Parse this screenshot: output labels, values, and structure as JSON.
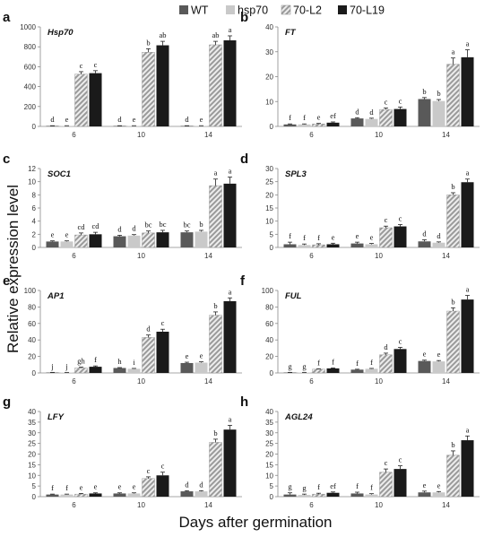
{
  "legend": [
    {
      "name": "WT",
      "color": "#595959",
      "pattern": "solid"
    },
    {
      "name": "hsp70",
      "color": "#c9c9c9",
      "pattern": "solid"
    },
    {
      "name": "70-L2",
      "color": "#a6a6a6",
      "pattern": "diagonal-stripes"
    },
    {
      "name": "70-L19",
      "color": "#1a1a1a",
      "pattern": "solid"
    }
  ],
  "ylabel": "Relative expression level",
  "xlabel": "Days after germination",
  "chart_data": [
    {
      "type": "bar",
      "panel": "a",
      "gene": "Hsp70",
      "categories": [
        "6",
        "10",
        "14"
      ],
      "ylim": [
        0,
        1000
      ],
      "yticks": [
        0,
        200,
        400,
        600,
        800,
        1000
      ],
      "series": [
        {
          "name": "WT",
          "values": [
            5,
            5,
            5
          ],
          "errors": [
            2,
            2,
            2
          ],
          "letters": [
            "d",
            "d",
            "d"
          ]
        },
        {
          "name": "hsp70",
          "values": [
            5,
            5,
            5
          ],
          "errors": [
            2,
            2,
            2
          ],
          "letters": [
            "e",
            "e",
            "e"
          ]
        },
        {
          "name": "70-L2",
          "values": [
            525,
            745,
            820
          ],
          "errors": [
            25,
            35,
            35
          ],
          "letters": [
            "c",
            "b",
            "ab"
          ]
        },
        {
          "name": "70-L19",
          "values": [
            535,
            815,
            865
          ],
          "errors": [
            25,
            40,
            45
          ],
          "letters": [
            "c",
            "ab",
            "a"
          ]
        }
      ]
    },
    {
      "type": "bar",
      "panel": "b",
      "gene": "FT",
      "categories": [
        "6",
        "10",
        "14"
      ],
      "ylim": [
        0,
        40
      ],
      "yticks": [
        0,
        10,
        20,
        30,
        40
      ],
      "series": [
        {
          "name": "WT",
          "values": [
            0.8,
            3.2,
            11
          ],
          "errors": [
            0.2,
            0.3,
            0.6
          ],
          "letters": [
            "f",
            "d",
            "b"
          ]
        },
        {
          "name": "hsp70",
          "values": [
            0.8,
            3.0,
            10.2
          ],
          "errors": [
            0.2,
            0.3,
            0.6
          ],
          "letters": [
            "f",
            "d",
            "b"
          ]
        },
        {
          "name": "70-L2",
          "values": [
            1.0,
            6.8,
            25
          ],
          "errors": [
            0.2,
            0.6,
            2.5
          ],
          "letters": [
            "e",
            "c",
            "a"
          ]
        },
        {
          "name": "70-L19",
          "values": [
            1.5,
            7.0,
            27.8
          ],
          "errors": [
            0.3,
            0.8,
            3.0
          ],
          "letters": [
            "ef",
            "c",
            "a"
          ]
        }
      ]
    },
    {
      "type": "bar",
      "panel": "c",
      "gene": "SOC1",
      "categories": [
        "6",
        "10",
        "14"
      ],
      "ylim": [
        0,
        12
      ],
      "yticks": [
        0,
        2,
        4,
        6,
        8,
        10,
        12
      ],
      "series": [
        {
          "name": "WT",
          "values": [
            0.9,
            1.7,
            2.3
          ],
          "errors": [
            0.1,
            0.15,
            0.2
          ],
          "letters": [
            "e",
            "d",
            "bc"
          ]
        },
        {
          "name": "hsp70",
          "values": [
            0.9,
            1.8,
            2.4
          ],
          "errors": [
            0.1,
            0.15,
            0.2
          ],
          "letters": [
            "e",
            "d",
            "b"
          ]
        },
        {
          "name": "70-L2",
          "values": [
            1.9,
            2.2,
            9.4
          ],
          "errors": [
            0.3,
            0.3,
            1.0
          ],
          "letters": [
            "cd",
            "bc",
            "a"
          ]
        },
        {
          "name": "70-L19",
          "values": [
            2.0,
            2.3,
            9.7
          ],
          "errors": [
            0.3,
            0.3,
            1.0
          ],
          "letters": [
            "cd",
            "bc",
            "a"
          ]
        }
      ]
    },
    {
      "type": "bar",
      "panel": "d",
      "gene": "SPL3",
      "categories": [
        "6",
        "10",
        "14"
      ],
      "ylim": [
        0,
        30
      ],
      "yticks": [
        0,
        5,
        10,
        15,
        20,
        25,
        30
      ],
      "series": [
        {
          "name": "WT",
          "values": [
            1.2,
            1.5,
            2.3
          ],
          "errors": [
            0.8,
            0.5,
            0.6
          ],
          "letters": [
            "f",
            "e",
            "d"
          ]
        },
        {
          "name": "hsp70",
          "values": [
            0.9,
            1.2,
            1.8
          ],
          "errors": [
            0.4,
            0.3,
            0.3
          ],
          "letters": [
            "f",
            "e",
            "d"
          ]
        },
        {
          "name": "70-L2",
          "values": [
            1.0,
            7.5,
            20
          ],
          "errors": [
            0.4,
            0.6,
            0.8
          ],
          "letters": [
            "f",
            "c",
            "b"
          ]
        },
        {
          "name": "70-L19",
          "values": [
            1.2,
            8.0,
            24.8
          ],
          "errors": [
            0.4,
            0.7,
            1.2
          ],
          "letters": [
            "e",
            "c",
            "a"
          ]
        }
      ]
    },
    {
      "type": "bar",
      "panel": "e",
      "gene": "AP1",
      "categories": [
        "6",
        "10",
        "14"
      ],
      "ylim": [
        0,
        100
      ],
      "yticks": [
        0,
        20,
        40,
        60,
        80,
        100
      ],
      "series": [
        {
          "name": "WT",
          "values": [
            0.5,
            6,
            12
          ],
          "errors": [
            0.2,
            0.5,
            1.0
          ],
          "letters": [
            "j",
            "h",
            "e"
          ]
        },
        {
          "name": "hsp70",
          "values": [
            0.5,
            5,
            12.5
          ],
          "errors": [
            0.2,
            0.5,
            1.0
          ],
          "letters": [
            "j",
            "i",
            "e"
          ]
        },
        {
          "name": "70-L2",
          "values": [
            6,
            43,
            70
          ],
          "errors": [
            1.0,
            3.0,
            4.0
          ],
          "letters": [
            "gh",
            "d",
            "b"
          ]
        },
        {
          "name": "70-L19",
          "values": [
            7.5,
            50,
            87
          ],
          "errors": [
            1.0,
            3.0,
            4.0
          ],
          "letters": [
            "f",
            "c",
            "a"
          ]
        }
      ]
    },
    {
      "type": "bar",
      "panel": "f",
      "gene": "FUL",
      "categories": [
        "6",
        "10",
        "14"
      ],
      "ylim": [
        0,
        100
      ],
      "yticks": [
        0,
        20,
        40,
        60,
        80,
        100
      ],
      "series": [
        {
          "name": "WT",
          "values": [
            0.5,
            4,
            14.5
          ],
          "errors": [
            0.2,
            0.5,
            1.0
          ],
          "letters": [
            "g",
            "f",
            "e"
          ]
        },
        {
          "name": "hsp70",
          "values": [
            0.5,
            5,
            14
          ],
          "errors": [
            0.2,
            0.5,
            1.0
          ],
          "letters": [
            "g",
            "f",
            "e"
          ]
        },
        {
          "name": "70-L2",
          "values": [
            4.5,
            22,
            75
          ],
          "errors": [
            0.5,
            2.0,
            4.0
          ],
          "letters": [
            "f",
            "d",
            "b"
          ]
        },
        {
          "name": "70-L19",
          "values": [
            5.5,
            29,
            89
          ],
          "errors": [
            0.5,
            2.0,
            5.0
          ],
          "letters": [
            "f",
            "c",
            "a"
          ]
        }
      ]
    },
    {
      "type": "bar",
      "panel": "g",
      "gene": "LFY",
      "categories": [
        "6",
        "10",
        "14"
      ],
      "ylim": [
        0,
        40
      ],
      "yticks": [
        0,
        5,
        10,
        15,
        20,
        25,
        30,
        35,
        40
      ],
      "series": [
        {
          "name": "WT",
          "values": [
            1.0,
            1.5,
            2.5
          ],
          "errors": [
            0.2,
            0.3,
            0.3
          ],
          "letters": [
            "f",
            "e",
            "d"
          ]
        },
        {
          "name": "hsp70",
          "values": [
            1.0,
            1.5,
            2.5
          ],
          "errors": [
            0.2,
            0.3,
            0.3
          ],
          "letters": [
            "f",
            "e",
            "d"
          ]
        },
        {
          "name": "70-L2",
          "values": [
            1.2,
            8.5,
            25.5
          ],
          "errors": [
            0.3,
            0.8,
            1.5
          ],
          "letters": [
            "e",
            "c",
            "b"
          ]
        },
        {
          "name": "70-L19",
          "values": [
            1.5,
            10,
            31.5
          ],
          "errors": [
            0.3,
            1.5,
            2.0
          ],
          "letters": [
            "e",
            "c",
            "a"
          ]
        }
      ]
    },
    {
      "type": "bar",
      "panel": "h",
      "gene": "AGL24",
      "categories": [
        "6",
        "10",
        "14"
      ],
      "ylim": [
        0,
        40
      ],
      "yticks": [
        0,
        5,
        10,
        15,
        20,
        25,
        30,
        35,
        40
      ],
      "series": [
        {
          "name": "WT",
          "values": [
            1.0,
            1.5,
            2.0
          ],
          "errors": [
            0.8,
            0.6,
            0.6
          ],
          "letters": [
            "g",
            "f",
            "e"
          ]
        },
        {
          "name": "hsp70",
          "values": [
            0.8,
            1.0,
            2.0
          ],
          "errors": [
            0.4,
            0.4,
            0.4
          ],
          "letters": [
            "g",
            "f",
            "e"
          ]
        },
        {
          "name": "70-L2",
          "values": [
            1.2,
            11.5,
            19.5
          ],
          "errors": [
            0.4,
            1.5,
            2.0
          ],
          "letters": [
            "f",
            "c",
            "b"
          ]
        },
        {
          "name": "70-L19",
          "values": [
            1.8,
            13,
            26.5
          ],
          "errors": [
            0.4,
            1.5,
            2.0
          ],
          "letters": [
            "ef",
            "c",
            "a"
          ]
        }
      ]
    }
  ]
}
